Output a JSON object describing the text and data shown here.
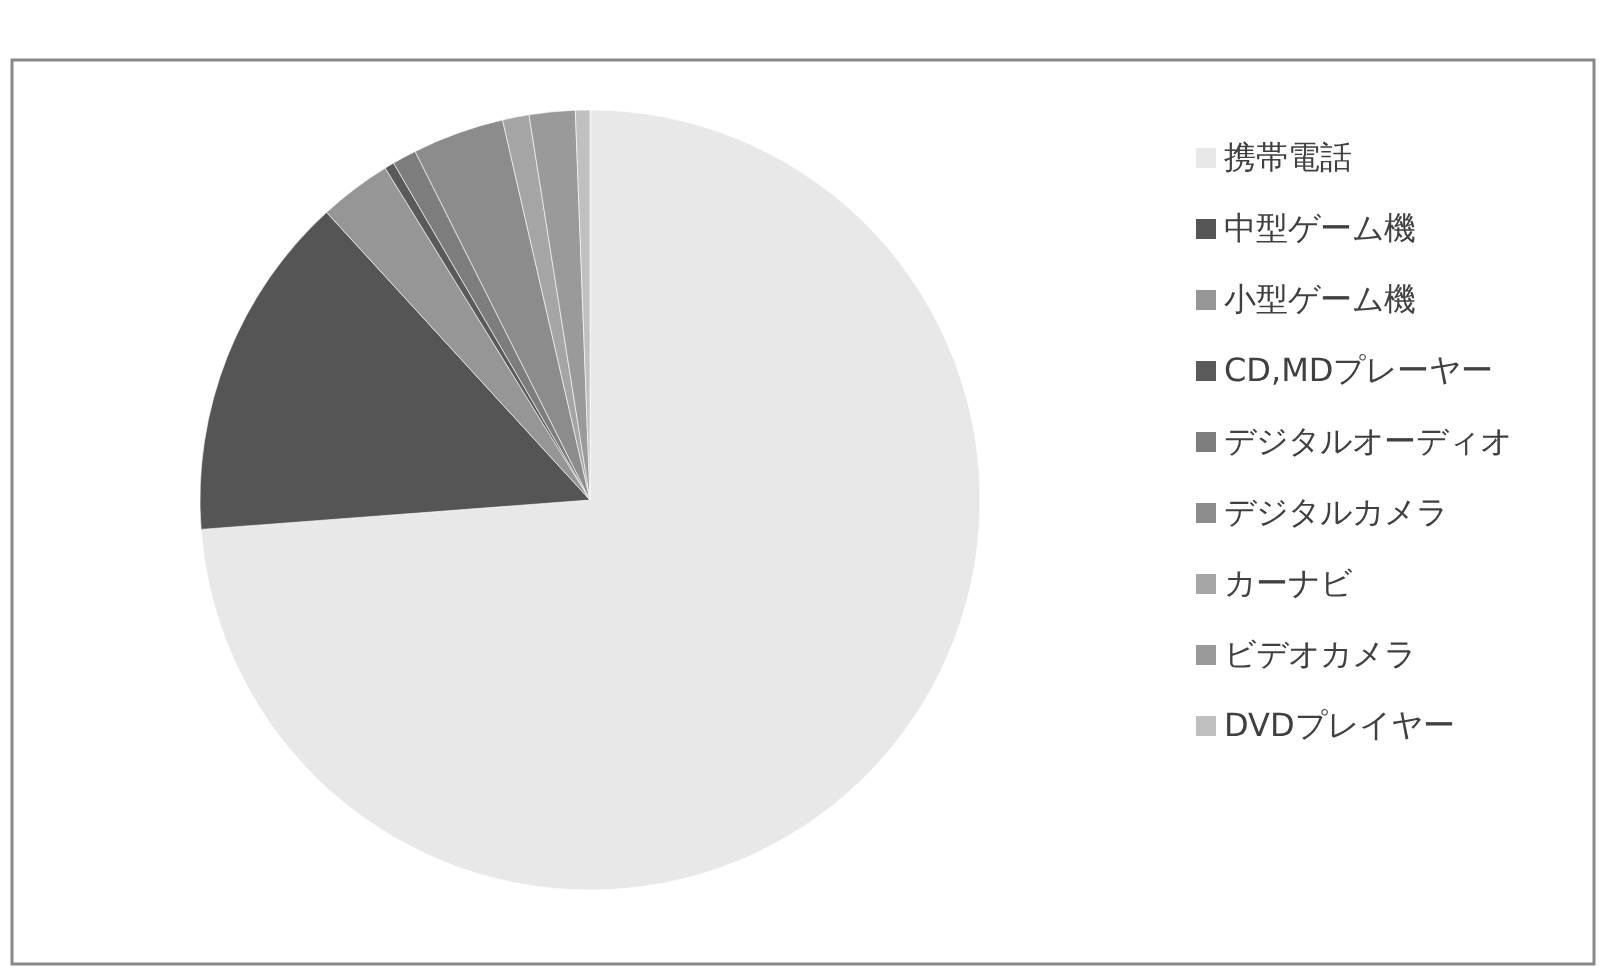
{
  "chart_data": {
    "type": "pie",
    "categories": [
      "携帯電話",
      "中型ゲーム機",
      "小型ゲーム機",
      "CD,MDプレーヤー",
      "デジタルオーディオ",
      "デジタルカメラ",
      "カーナビ",
      "ビデオカメラ",
      "DVDプレイヤー"
    ],
    "values": [
      73.8,
      14.4,
      3.0,
      0.4,
      1.0,
      3.8,
      1.1,
      1.9,
      0.6
    ],
    "colors": [
      "#e8e8e8",
      "#555555",
      "#969696",
      "#5a5a5a",
      "#7d7d7d",
      "#8c8c8c",
      "#a5a5a5",
      "#9a9a9a",
      "#c0c0c0"
    ],
    "legend": "right"
  }
}
